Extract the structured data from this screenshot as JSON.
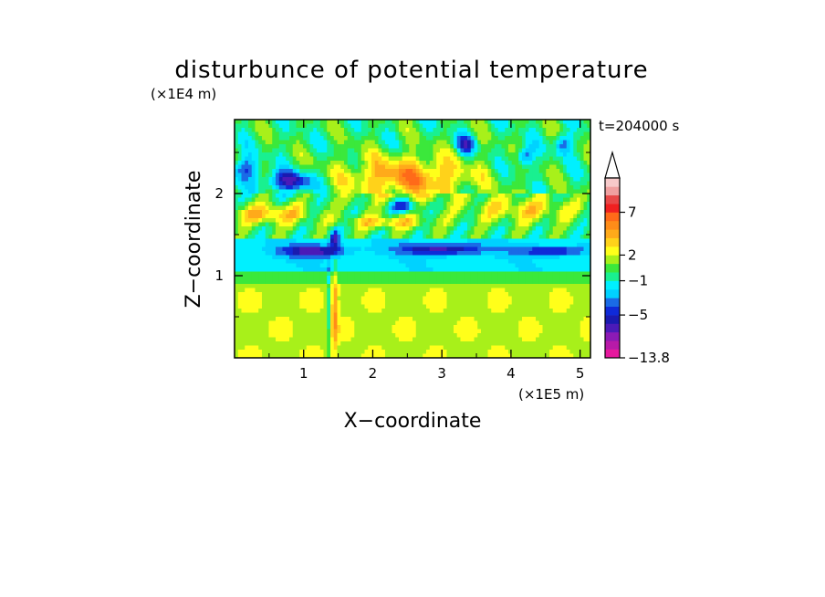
{
  "chart_data": {
    "type": "heatmap",
    "title": "disturbunce of potential temperature",
    "time_label": "t=204000 s",
    "xlabel": "X−coordinate",
    "ylabel": "Z−coordinate",
    "x_unit": "(×1E5 m)",
    "y_unit": "(×1E4 m)",
    "xlim": [
      0,
      5.15
    ],
    "ylim": [
      0,
      2.9
    ],
    "x_ticks": [
      1,
      2,
      3,
      4,
      5
    ],
    "y_ticks": [
      1,
      2
    ],
    "x_tick_labels": [
      "1",
      "2",
      "3",
      "4",
      "5"
    ],
    "y_tick_labels": [
      "1",
      "2"
    ],
    "colorbar": {
      "min": -13.8,
      "labels": [
        {
          "value": 7,
          "text": "7"
        },
        {
          "value": 2,
          "text": "2"
        },
        {
          "value": -1,
          "text": "−1"
        },
        {
          "value": -5,
          "text": "−5"
        },
        {
          "value": -13.8,
          "text": "−13.8"
        }
      ],
      "levels": [
        -13.8,
        -11,
        -9,
        -7,
        -6,
        -5,
        -4,
        -3,
        -2,
        -1,
        0,
        1,
        2,
        3,
        4,
        5,
        6,
        7,
        8,
        9,
        10
      ],
      "colors": [
        "#e6199e",
        "#b81aa8",
        "#8c1ab5",
        "#4b1ab8",
        "#1a1ab0",
        "#0f2ad8",
        "#1a6be6",
        "#00d2ff",
        "#00f0ff",
        "#19f090",
        "#3be83b",
        "#a8f01a",
        "#ffff1a",
        "#ffd21a",
        "#ffaa1a",
        "#ff8c19",
        "#ff6a19",
        "#f02020",
        "#e84848",
        "#f0a0a0",
        "#f7caca"
      ]
    },
    "grid": false,
    "colors": {
      "negative_strong": "#1a1ab0",
      "negative_weak": "#00f0ff",
      "near_zero": "#3be83b",
      "positive_weak": "#ffff1a",
      "positive_strong": "#ff6a19"
    }
  }
}
